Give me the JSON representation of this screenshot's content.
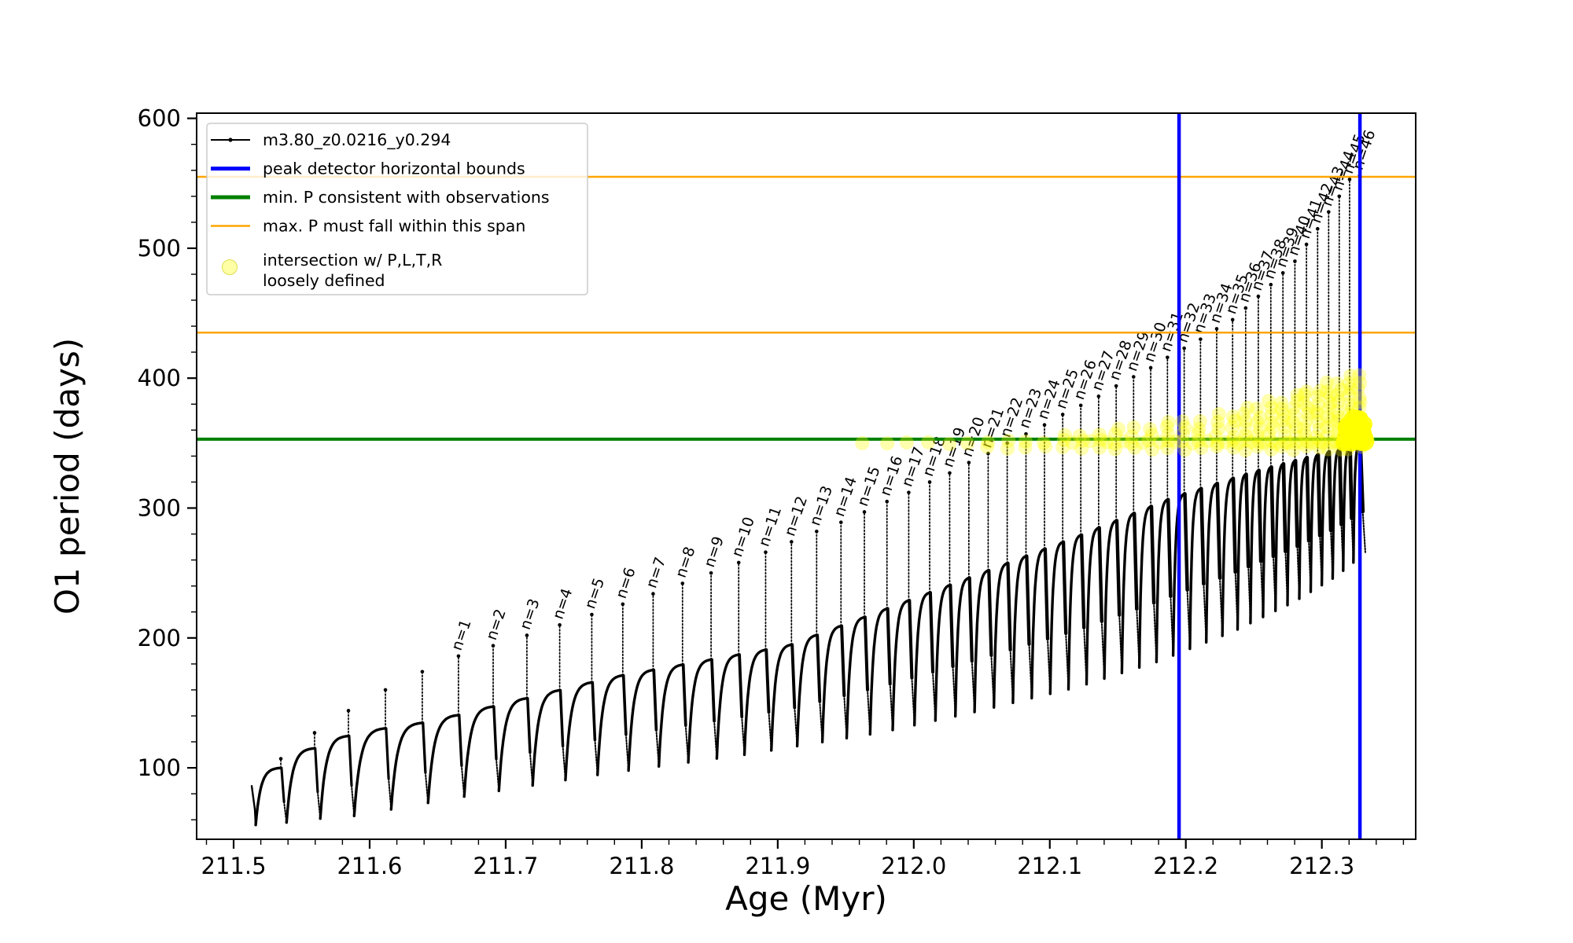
{
  "page": {
    "background": "#ffffff"
  },
  "chart_data": {
    "type": "line",
    "title": "",
    "xlabel": "Age (Myr)",
    "ylabel": "O1 period (days)",
    "series_label": "m3.80_z0.0216_y0.294",
    "xlim": [
      211.4728,
      212.369
    ],
    "ylim": [
      45,
      604
    ],
    "x_major_ticks": [
      211.5,
      211.6,
      211.7,
      211.8,
      211.9,
      212.0,
      212.1,
      212.2,
      212.3
    ],
    "x_minor_step": 0.02,
    "y_major_ticks": [
      100,
      200,
      300,
      400,
      500,
      600
    ],
    "y_minor_step": 20,
    "grid": false,
    "hlines": [
      {
        "name": "max-P-span-upper",
        "label": "max. P must fall within this span",
        "y": 555,
        "color": "#FFA500",
        "lw": 2.5
      },
      {
        "name": "max-P-span-lower",
        "label": "max. P must fall within this span",
        "y": 435,
        "color": "#FFA500",
        "lw": 2.5
      },
      {
        "name": "min-P-observed",
        "label": "min. P consistent with observations",
        "y": 353,
        "color": "#008000",
        "lw": 4
      }
    ],
    "vlines": [
      {
        "name": "peak-bound-left",
        "label": "peak detector horizontal bounds",
        "x": 212.195,
        "color": "#0000FF",
        "lw": 4.5
      },
      {
        "name": "peak-bound-right",
        "label": "peak detector horizontal bounds",
        "x": 212.328,
        "color": "#0000FF",
        "lw": 4.5
      }
    ],
    "curve": {
      "color": "#000000",
      "start": {
        "age": 211.5133,
        "period": 86
      },
      "min_anchors": [
        [
          211.5162,
          56
        ],
        [
          211.54,
          58
        ],
        [
          211.5645,
          61
        ],
        [
          211.589,
          63
        ],
        [
          211.616,
          68
        ],
        [
          211.643,
          73
        ],
        [
          211.67,
          78
        ],
        [
          211.77,
          95
        ],
        [
          211.875,
          110
        ],
        [
          211.975,
          127
        ],
        [
          212.045,
          143
        ],
        [
          212.12,
          162
        ],
        [
          212.18,
          182
        ],
        [
          212.235,
          205
        ],
        [
          212.28,
          228
        ],
        [
          212.31,
          247
        ],
        [
          212.335,
          268
        ]
      ],
      "plateau_anchors": [
        [
          211.53,
          97
        ],
        [
          211.557,
          114
        ],
        [
          211.582,
          124
        ],
        [
          211.609,
          130
        ],
        [
          211.636,
          134
        ],
        [
          211.663,
          140
        ],
        [
          211.78,
          170
        ],
        [
          211.908,
          194
        ],
        [
          212.04,
          246
        ],
        [
          212.12,
          278
        ],
        [
          212.19,
          308
        ],
        [
          212.25,
          328
        ],
        [
          212.3,
          342
        ],
        [
          212.33,
          350
        ]
      ],
      "unlabeled_spikes": [
        {
          "age": 211.5347,
          "peak": 107
        },
        {
          "age": 211.5595,
          "peak": 127
        },
        {
          "age": 211.5844,
          "peak": 144
        },
        {
          "age": 211.6116,
          "peak": 160
        },
        {
          "age": 211.6387,
          "peak": 174
        }
      ],
      "spikes": [
        {
          "n": 1,
          "label": "n=1",
          "age": 211.6653,
          "peak": 186
        },
        {
          "n": 2,
          "label": "n=2",
          "age": 211.6908,
          "peak": 194
        },
        {
          "n": 3,
          "label": "n=3",
          "age": 211.7156,
          "peak": 202
        },
        {
          "n": 4,
          "label": "n=4",
          "age": 211.7397,
          "peak": 210
        },
        {
          "n": 5,
          "label": "n=5",
          "age": 211.7633,
          "peak": 218
        },
        {
          "n": 6,
          "label": "n=6",
          "age": 211.7861,
          "peak": 226
        },
        {
          "n": 7,
          "label": "n=7",
          "age": 211.8084,
          "peak": 234
        },
        {
          "n": 8,
          "label": "n=8",
          "age": 211.83,
          "peak": 242
        },
        {
          "n": 9,
          "label": "n=9",
          "age": 211.851,
          "peak": 250
        },
        {
          "n": 10,
          "label": "n=10",
          "age": 211.8713,
          "peak": 258
        },
        {
          "n": 11,
          "label": "n=11",
          "age": 211.8911,
          "peak": 266
        },
        {
          "n": 12,
          "label": "n=12",
          "age": 211.9101,
          "peak": 274
        },
        {
          "n": 13,
          "label": "n=13",
          "age": 211.9286,
          "peak": 282
        },
        {
          "n": 14,
          "label": "n=14",
          "age": 211.9465,
          "peak": 289
        },
        {
          "n": 15,
          "label": "n=15",
          "age": 211.9637,
          "peak": 297
        },
        {
          "n": 16,
          "label": "n=16",
          "age": 211.9803,
          "peak": 305
        },
        {
          "n": 17,
          "label": "n=17",
          "age": 211.9963,
          "peak": 312
        },
        {
          "n": 18,
          "label": "n=18",
          "age": 212.0117,
          "peak": 320
        },
        {
          "n": 19,
          "label": "n=19",
          "age": 212.0264,
          "peak": 327
        },
        {
          "n": 20,
          "label": "n=20",
          "age": 212.0405,
          "peak": 335
        },
        {
          "n": 21,
          "label": "n=21",
          "age": 212.0547,
          "peak": 342
        },
        {
          "n": 22,
          "label": "n=22",
          "age": 212.0687,
          "peak": 350
        },
        {
          "n": 23,
          "label": "n=23",
          "age": 212.0825,
          "peak": 357
        },
        {
          "n": 24,
          "label": "n=24",
          "age": 212.0961,
          "peak": 364
        },
        {
          "n": 25,
          "label": "n=25",
          "age": 212.1095,
          "peak": 372
        },
        {
          "n": 26,
          "label": "n=26",
          "age": 212.1228,
          "peak": 379
        },
        {
          "n": 27,
          "label": "n=27",
          "age": 212.1359,
          "peak": 386
        },
        {
          "n": 28,
          "label": "n=28",
          "age": 212.1488,
          "peak": 394
        },
        {
          "n": 29,
          "label": "n=29",
          "age": 212.1616,
          "peak": 401
        },
        {
          "n": 30,
          "label": "n=30",
          "age": 212.1742,
          "peak": 408
        },
        {
          "n": 31,
          "label": "n=31",
          "age": 212.1865,
          "peak": 416
        },
        {
          "n": 32,
          "label": "n=32",
          "age": 212.1988,
          "peak": 423
        },
        {
          "n": 33,
          "label": "n=33",
          "age": 212.2108,
          "peak": 430
        },
        {
          "n": 34,
          "label": "n=34",
          "age": 212.2227,
          "peak": 438
        },
        {
          "n": 35,
          "label": "n=35",
          "age": 212.2344,
          "peak": 445
        },
        {
          "n": 36,
          "label": "n=36",
          "age": 212.244,
          "peak": 454
        },
        {
          "n": 37,
          "label": "n=37",
          "age": 212.2533,
          "peak": 463
        },
        {
          "n": 38,
          "label": "n=38",
          "age": 212.2625,
          "peak": 472
        },
        {
          "n": 39,
          "label": "n=39",
          "age": 212.2714,
          "peak": 481
        },
        {
          "n": 40,
          "label": "n=40",
          "age": 212.2802,
          "peak": 490
        },
        {
          "n": 41,
          "label": "n=41",
          "age": 212.2887,
          "peak": 503
        },
        {
          "n": 42,
          "label": "n=42",
          "age": 212.2969,
          "peak": 515
        },
        {
          "n": 43,
          "label": "n=43",
          "age": 212.305,
          "peak": 528
        },
        {
          "n": 44,
          "label": "n=44",
          "age": 212.3128,
          "peak": 540
        },
        {
          "n": 45,
          "label": "n=45",
          "age": 212.3204,
          "peak": 553
        },
        {
          "n": 46,
          "label": "n=46",
          "age": 212.3278,
          "peak": 556
        }
      ]
    },
    "yellow_scatter": {
      "label": "intersection w/ P,L,T,R loosely defined",
      "color": "#FFFF00",
      "alpha": 0.32,
      "radius_px": 9,
      "row_start_n": 26,
      "row_period": 350.5,
      "columns": [
        {
          "n": 15,
          "from": 350,
          "to": 354
        },
        {
          "n": 16,
          "from": 350,
          "to": 354
        },
        {
          "n": 17,
          "from": 350,
          "to": 354
        },
        {
          "n": 18,
          "from": 350,
          "to": 354
        },
        {
          "n": 19,
          "from": 350,
          "to": 354
        },
        {
          "n": 20,
          "from": 350,
          "to": 354
        },
        {
          "n": 21,
          "from": 346,
          "to": 351
        },
        {
          "n": 22,
          "from": 346,
          "to": 352.6
        },
        {
          "n": 23,
          "from": 346,
          "to": 354.1
        },
        {
          "n": 24,
          "from": 346,
          "to": 355.6
        },
        {
          "n": 25,
          "from": 346,
          "to": 357.1
        },
        {
          "n": 26,
          "from": 346,
          "to": 358.6
        },
        {
          "n": 27,
          "from": 346,
          "to": 360.1
        },
        {
          "n": 28,
          "from": 346,
          "to": 361.6
        },
        {
          "n": 29,
          "from": 346,
          "to": 363.1
        },
        {
          "n": 30,
          "from": 346,
          "to": 364.6
        },
        {
          "n": 31,
          "from": 346,
          "to": 366.1
        },
        {
          "n": 32,
          "from": 346,
          "to": 367.6
        },
        {
          "n": 33,
          "from": 346,
          "to": 369.1
        },
        {
          "n": 34,
          "from": 346,
          "to": 371
        },
        {
          "n": 35,
          "from": 346,
          "to": 373.9
        },
        {
          "n": 36,
          "from": 346,
          "to": 376.8
        },
        {
          "n": 37,
          "from": 346,
          "to": 379.7
        },
        {
          "n": 38,
          "from": 346,
          "to": 382.6
        },
        {
          "n": 39,
          "from": 346,
          "to": 385.5
        },
        {
          "n": 40,
          "from": 346,
          "to": 388.4
        },
        {
          "n": 41,
          "from": 346,
          "to": 391.3
        },
        {
          "n": 42,
          "from": 346,
          "to": 394.2
        },
        {
          "n": 43,
          "from": 346,
          "to": 397.1
        },
        {
          "n": 44,
          "from": 346,
          "to": 400
        },
        {
          "n": 45,
          "from": 346,
          "to": 402.9
        },
        {
          "n": 46,
          "from": 346,
          "to": 405.8
        }
      ],
      "blob": {
        "age": 212.324,
        "period": 360,
        "age_spread": 0.008,
        "period_spread": 10,
        "count": 34
      }
    }
  },
  "legend": {
    "items": [
      {
        "label": "m3.80_z0.0216_y0.294",
        "type": "line-marker",
        "color": "#000000",
        "lw": 2
      },
      {
        "label": "peak detector horizontal bounds",
        "type": "line",
        "color": "#0000FF",
        "lw": 5
      },
      {
        "label": "min. P consistent with observations",
        "type": "line",
        "color": "#008000",
        "lw": 5
      },
      {
        "label": "max. P must fall within this span",
        "type": "line",
        "color": "#FFA500",
        "lw": 2.5
      },
      {
        "label": "intersection w/ P,L,T,R\nloosely defined",
        "type": "marker",
        "color": "#FFFF00",
        "alpha": 0.35
      }
    ]
  }
}
